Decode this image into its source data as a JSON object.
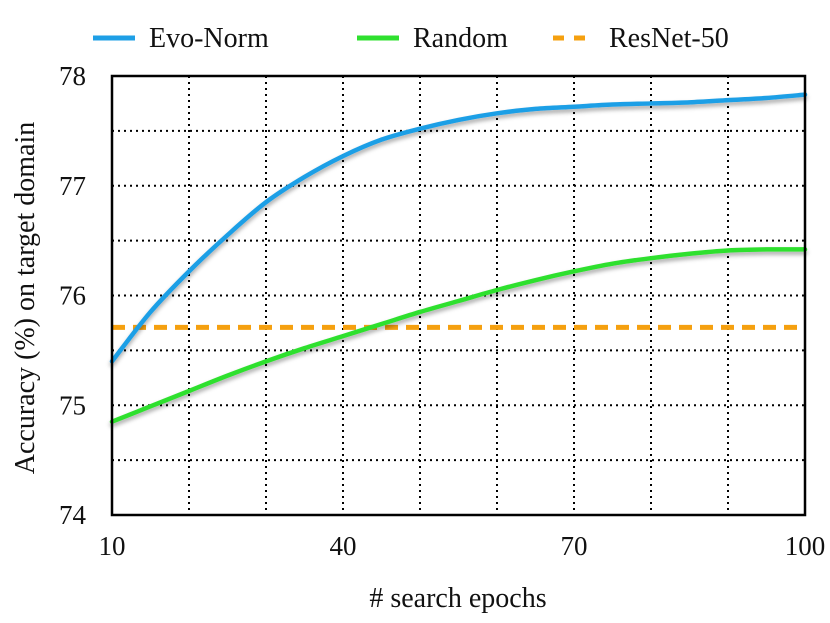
{
  "chart_data": {
    "type": "line",
    "title": "",
    "xlabel": "# search epochs",
    "ylabel": "Accuracy (%) on target domain",
    "xlim": [
      10,
      100
    ],
    "ylim": [
      74,
      78
    ],
    "x_ticks": [
      10,
      40,
      70,
      100
    ],
    "y_ticks": [
      74,
      75,
      76,
      77,
      78
    ],
    "grid": true,
    "grid_style": "dotted",
    "legend_position": "top",
    "series": [
      {
        "name": "Evo-Norm",
        "color": "#1e9fe6",
        "style": "solid",
        "x": [
          10,
          15,
          20,
          25,
          30,
          35,
          40,
          45,
          50,
          55,
          60,
          65,
          70,
          75,
          80,
          85,
          90,
          95,
          100
        ],
        "y": [
          75.4,
          75.85,
          76.22,
          76.55,
          76.85,
          77.08,
          77.27,
          77.42,
          77.52,
          77.6,
          77.66,
          77.7,
          77.72,
          77.74,
          77.75,
          77.76,
          77.78,
          77.8,
          77.83
        ]
      },
      {
        "name": "Random",
        "color": "#2fe02f",
        "style": "solid",
        "x": [
          10,
          15,
          20,
          25,
          30,
          35,
          40,
          45,
          50,
          55,
          60,
          65,
          70,
          75,
          80,
          85,
          90,
          95,
          100
        ],
        "y": [
          74.85,
          74.99,
          75.13,
          75.27,
          75.4,
          75.52,
          75.63,
          75.74,
          75.85,
          75.95,
          76.05,
          76.14,
          76.22,
          76.29,
          76.34,
          76.38,
          76.41,
          76.42,
          76.42
        ]
      },
      {
        "name": "ResNet-50",
        "color": "#f5a00f",
        "style": "dashed",
        "x": [
          10,
          100
        ],
        "y": [
          75.71,
          75.71
        ]
      }
    ]
  }
}
